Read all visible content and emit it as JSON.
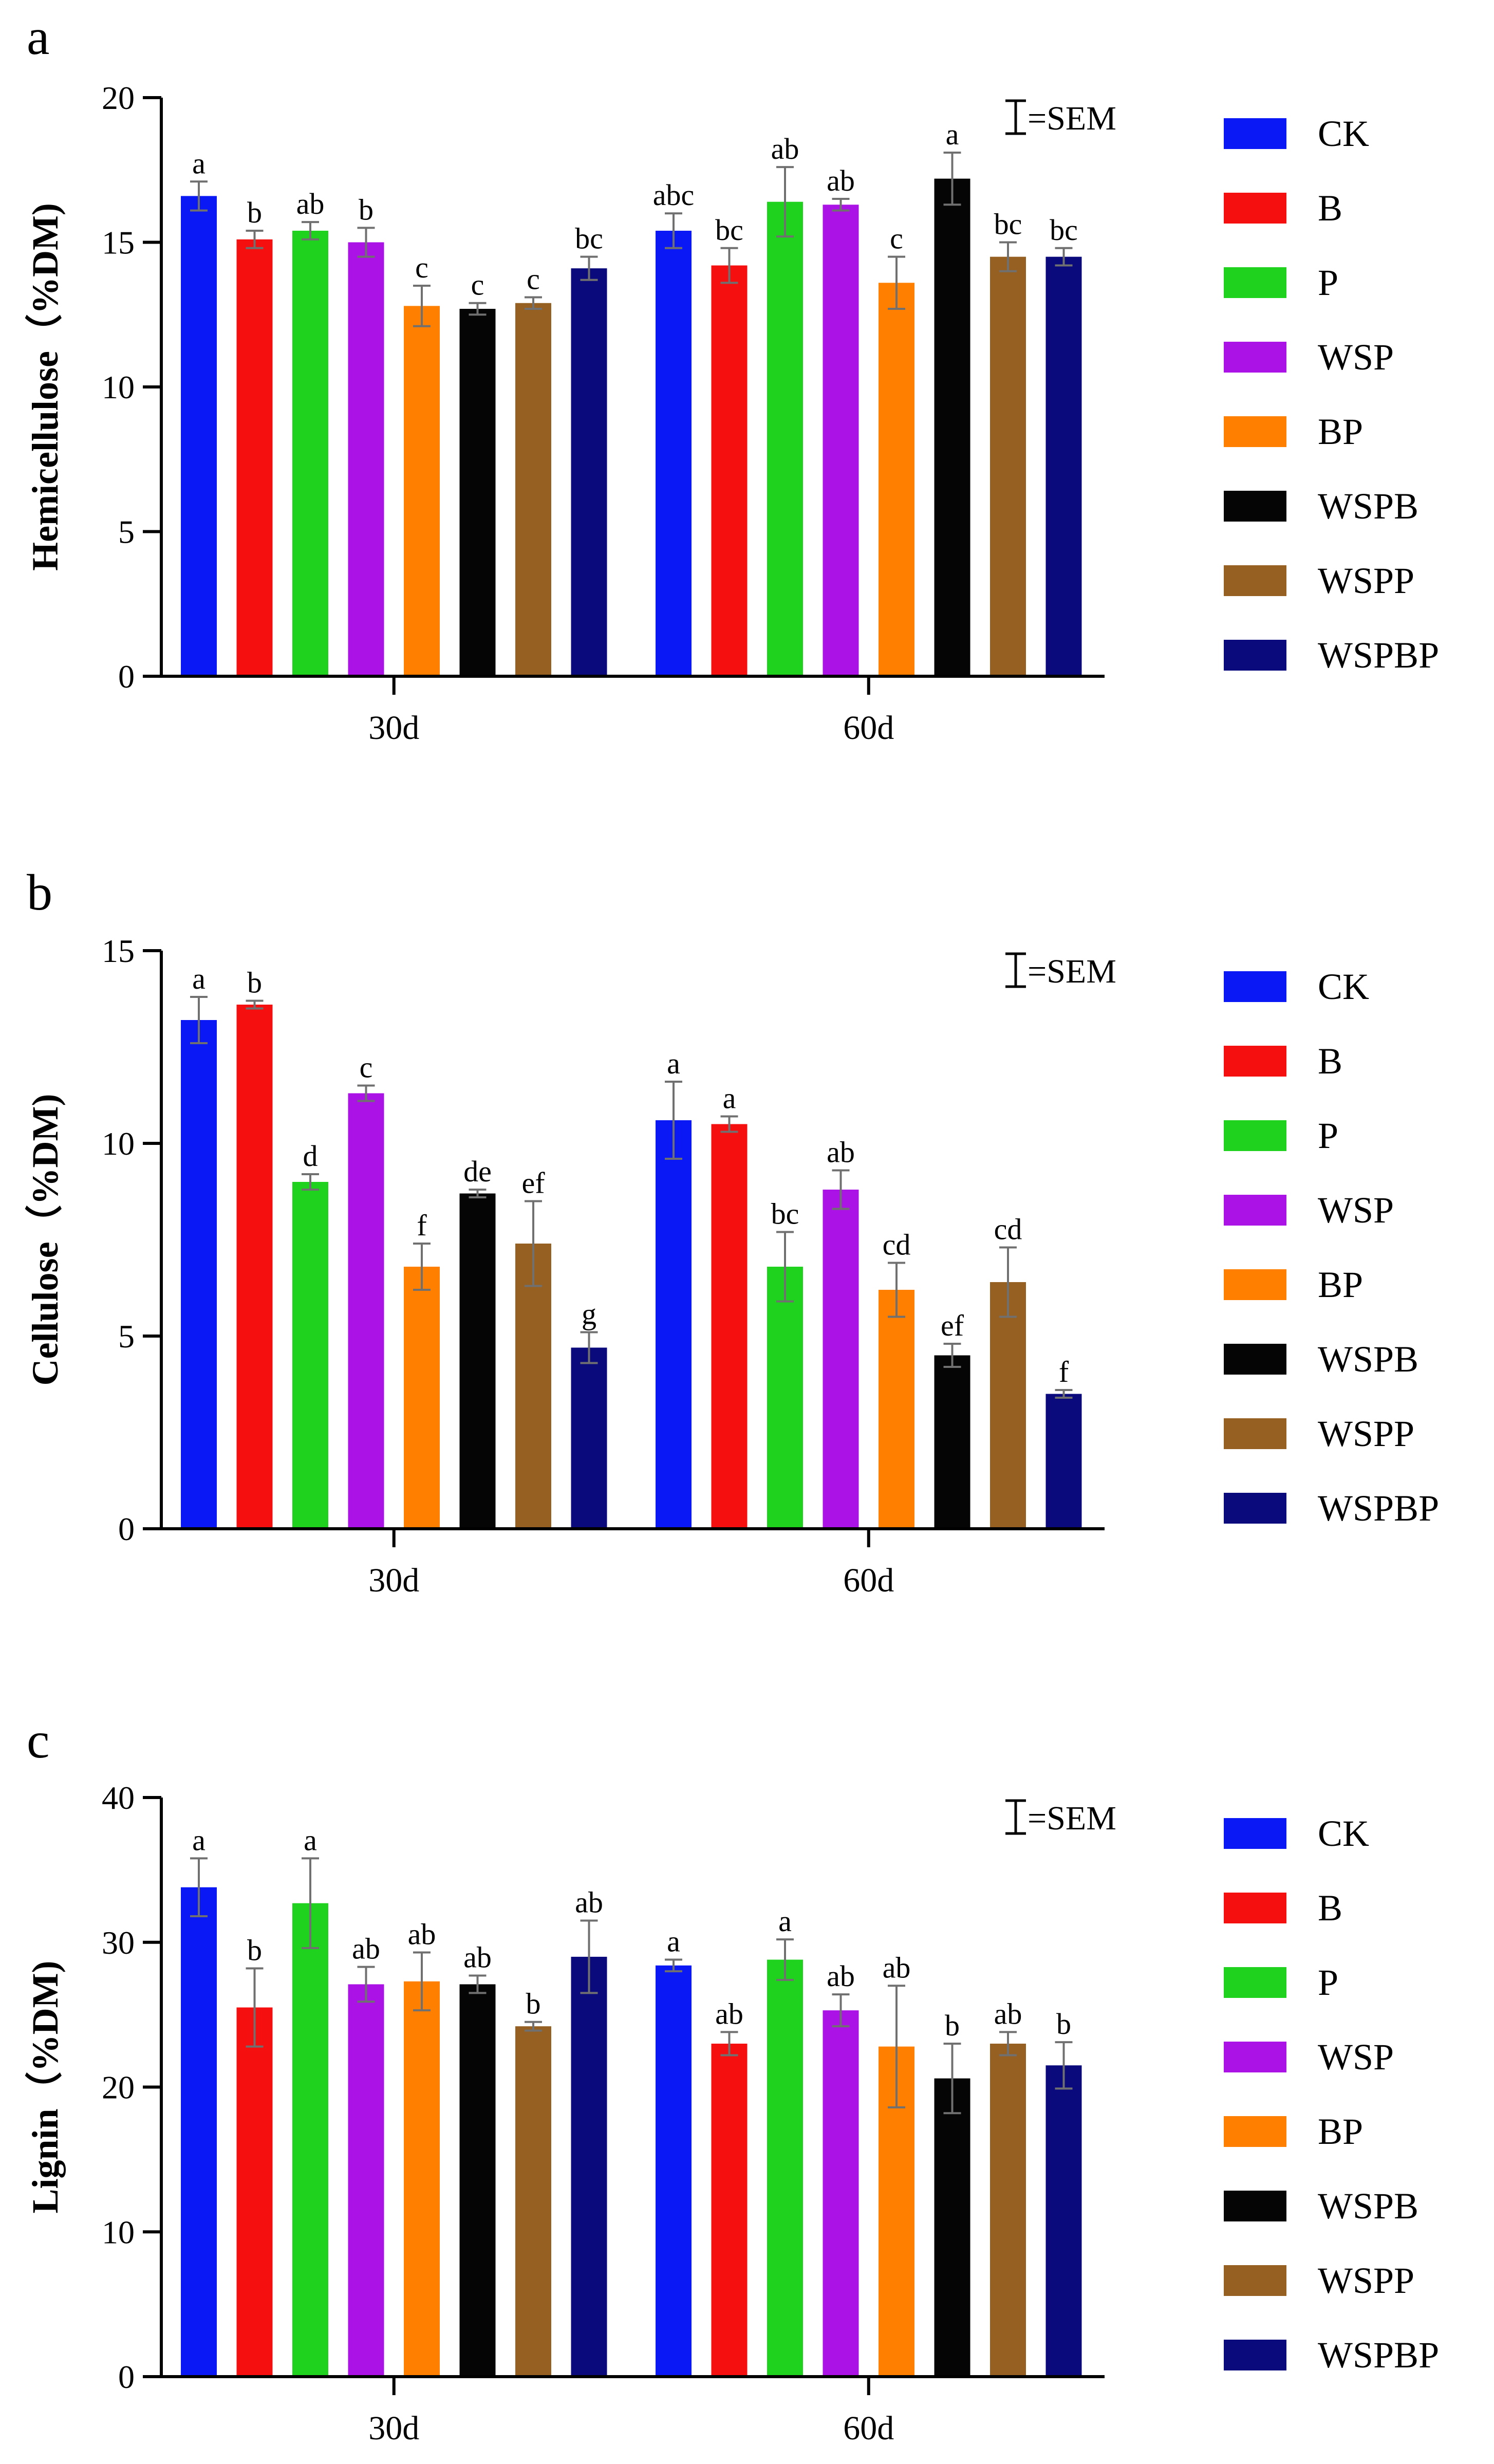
{
  "colors": [
    "#0a18f5",
    "#f50f0f",
    "#1ed21e",
    "#aa12e6",
    "#ff8000",
    "#050505",
    "#956021",
    "#0a0a7c"
  ],
  "error_bar_color": "#707070",
  "chart_data": [
    {
      "type": "bar",
      "panel_label": "a",
      "ylabel": "Hemicellulose（%DM)",
      "ylim": [
        0,
        20
      ],
      "yticks": [
        "0",
        "5",
        "10",
        "15",
        "20"
      ],
      "categories": [
        "30d",
        "60d"
      ],
      "sem_label": "=SEM",
      "legend": [
        "CK",
        "B",
        "P",
        "WSP",
        "BP",
        "WSPB",
        "WSPP",
        "WSPBP"
      ],
      "series": [
        {
          "name": "CK",
          "values": [
            16.6,
            15.4
          ],
          "errors": [
            0.5,
            0.6
          ],
          "letters": [
            "a",
            "abc"
          ]
        },
        {
          "name": "B",
          "values": [
            15.1,
            14.2
          ],
          "errors": [
            0.3,
            0.6
          ],
          "letters": [
            "b",
            "bc"
          ]
        },
        {
          "name": "P",
          "values": [
            15.4,
            16.4
          ],
          "errors": [
            0.3,
            1.2
          ],
          "letters": [
            "ab",
            "ab"
          ]
        },
        {
          "name": "WSP",
          "values": [
            15.0,
            16.3
          ],
          "errors": [
            0.5,
            0.2
          ],
          "letters": [
            "b",
            "ab"
          ]
        },
        {
          "name": "BP",
          "values": [
            12.8,
            13.6
          ],
          "errors": [
            0.7,
            0.9
          ],
          "letters": [
            "c",
            "c"
          ]
        },
        {
          "name": "WSPB",
          "values": [
            12.7,
            17.2
          ],
          "errors": [
            0.2,
            0.9
          ],
          "letters": [
            "c",
            "a"
          ]
        },
        {
          "name": "WSPP",
          "values": [
            12.9,
            14.5
          ],
          "errors": [
            0.2,
            0.5
          ],
          "letters": [
            "c",
            "bc"
          ]
        },
        {
          "name": "WSPBP",
          "values": [
            14.1,
            14.5
          ],
          "errors": [
            0.4,
            0.3
          ],
          "letters": [
            "bc",
            "bc"
          ]
        }
      ]
    },
    {
      "type": "bar",
      "panel_label": "b",
      "ylabel": "Cellulose（%DM)",
      "ylim": [
        0,
        15
      ],
      "yticks": [
        "0",
        "5",
        "10",
        "15"
      ],
      "categories": [
        "30d",
        "60d"
      ],
      "sem_label": "=SEM",
      "legend": [
        "CK",
        "B",
        "P",
        "WSP",
        "BP",
        "WSPB",
        "WSPP",
        "WSPBP"
      ],
      "series": [
        {
          "name": "CK",
          "values": [
            13.2,
            10.6
          ],
          "errors": [
            0.6,
            1.0
          ],
          "letters": [
            "a",
            "a"
          ]
        },
        {
          "name": "B",
          "values": [
            13.6,
            10.5
          ],
          "errors": [
            0.1,
            0.2
          ],
          "letters": [
            "b",
            "a"
          ]
        },
        {
          "name": "P",
          "values": [
            9.0,
            6.8
          ],
          "errors": [
            0.2,
            0.9
          ],
          "letters": [
            "d",
            "bc"
          ]
        },
        {
          "name": "WSP",
          "values": [
            11.3,
            8.8
          ],
          "errors": [
            0.2,
            0.5
          ],
          "letters": [
            "c",
            "ab"
          ]
        },
        {
          "name": "BP",
          "values": [
            6.8,
            6.2
          ],
          "errors": [
            0.6,
            0.7
          ],
          "letters": [
            "f",
            "cd"
          ]
        },
        {
          "name": "WSPB",
          "values": [
            8.7,
            4.5
          ],
          "errors": [
            0.1,
            0.3
          ],
          "letters": [
            "de",
            "ef"
          ]
        },
        {
          "name": "WSPP",
          "values": [
            7.4,
            6.4
          ],
          "errors": [
            1.1,
            0.9
          ],
          "letters": [
            "ef",
            "cd"
          ]
        },
        {
          "name": "WSPBP",
          "values": [
            4.7,
            3.5
          ],
          "errors": [
            0.4,
            0.1
          ],
          "letters": [
            "g",
            "f"
          ]
        }
      ]
    },
    {
      "type": "bar",
      "panel_label": "c",
      "ylabel": "Lignin（%DM)",
      "ylim": [
        0,
        40
      ],
      "yticks": [
        "0",
        "10",
        "20",
        "30",
        "40"
      ],
      "categories": [
        "30d",
        "60d"
      ],
      "sem_label": "=SEM",
      "legend": [
        "CK",
        "B",
        "P",
        "WSP",
        "BP",
        "WSPB",
        "WSPP",
        "WSPBP"
      ],
      "series": [
        {
          "name": "CK",
          "values": [
            33.8,
            28.4
          ],
          "errors": [
            2.0,
            0.4
          ],
          "letters": [
            "a",
            "a"
          ]
        },
        {
          "name": "B",
          "values": [
            25.5,
            23.0
          ],
          "errors": [
            2.7,
            0.8
          ],
          "letters": [
            "b",
            "ab"
          ]
        },
        {
          "name": "P",
          "values": [
            32.7,
            28.8
          ],
          "errors": [
            3.1,
            1.4
          ],
          "letters": [
            "a",
            "a"
          ]
        },
        {
          "name": "WSP",
          "values": [
            27.1,
            25.3
          ],
          "errors": [
            1.2,
            1.1
          ],
          "letters": [
            "ab",
            "ab"
          ]
        },
        {
          "name": "BP",
          "values": [
            27.3,
            22.8
          ],
          "errors": [
            2.0,
            4.2
          ],
          "letters": [
            "ab",
            "ab"
          ]
        },
        {
          "name": "WSPB",
          "values": [
            27.1,
            20.6
          ],
          "errors": [
            0.6,
            2.4
          ],
          "letters": [
            "ab",
            "b"
          ]
        },
        {
          "name": "WSPP",
          "values": [
            24.2,
            23.0
          ],
          "errors": [
            0.3,
            0.8
          ],
          "letters": [
            "b",
            "ab"
          ]
        },
        {
          "name": "WSPBP",
          "values": [
            29.0,
            21.5
          ],
          "errors": [
            2.5,
            1.6
          ],
          "letters": [
            "ab",
            "b"
          ]
        }
      ]
    }
  ]
}
